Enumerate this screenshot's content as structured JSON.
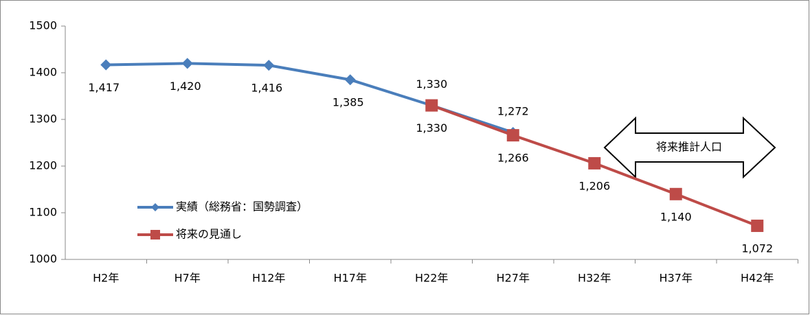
{
  "chart_data": {
    "type": "line",
    "categories": [
      "H2年",
      "H7年",
      "H12年",
      "H17年",
      "H22年",
      "H27年",
      "H32年",
      "H37年",
      "H42年"
    ],
    "series": [
      {
        "name": "実績（総務省：国勢調査）",
        "color": "#4a7ebb",
        "marker": "diamond",
        "values": [
          1417,
          1420,
          1416,
          1385,
          1330,
          1272,
          null,
          null,
          null
        ],
        "value_labels": [
          "1,417",
          "1,420",
          "1,416",
          "1,385",
          "1,330",
          "1,272",
          null,
          null,
          null
        ]
      },
      {
        "name": "将来の見通し",
        "color": "#be4b48",
        "marker": "square",
        "values": [
          null,
          null,
          null,
          null,
          1330,
          1266,
          1206,
          1140,
          1072
        ],
        "value_labels": [
          null,
          null,
          null,
          null,
          "1,330",
          "1,266",
          "1,206",
          "1,140",
          "1,072"
        ]
      }
    ],
    "annotation": "将来推計人口",
    "ylim": [
      1000,
      1500
    ],
    "yticks": [
      1000,
      1100,
      1200,
      1300,
      1400,
      1500
    ],
    "grid": false
  }
}
